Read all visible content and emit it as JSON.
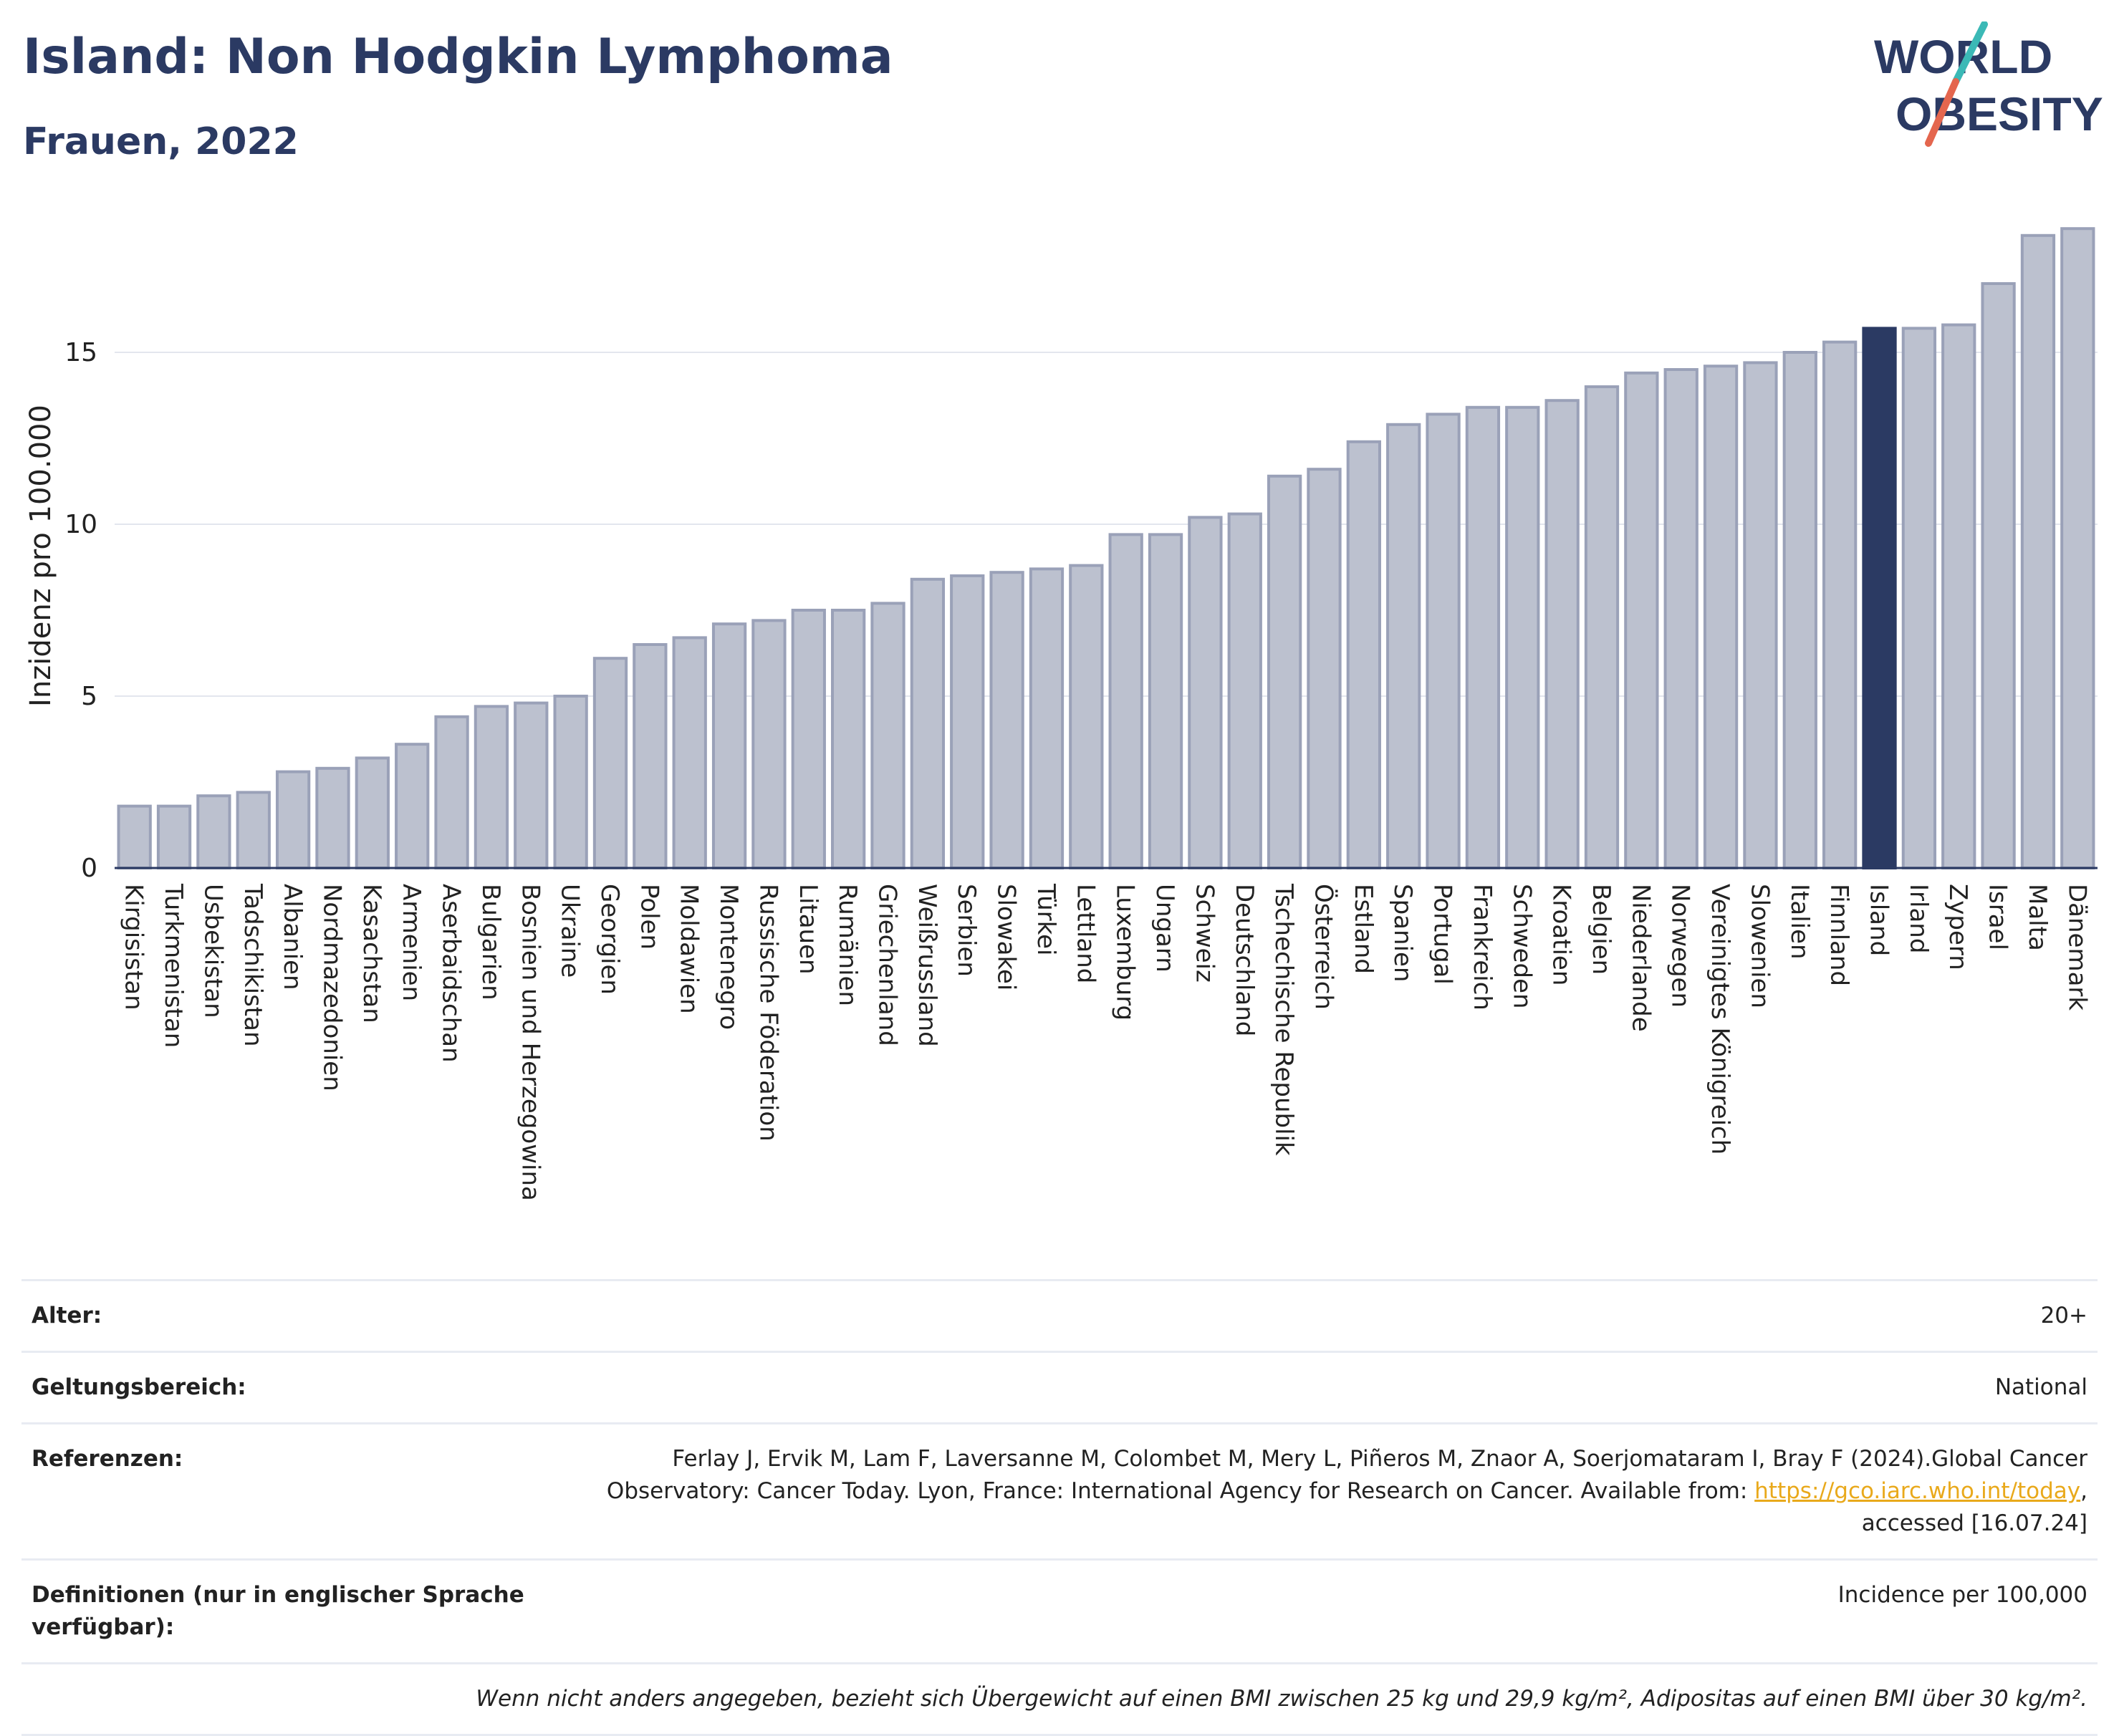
{
  "header": {
    "title": "Island: Non Hodgkin Lymphoma",
    "subtitle": "Frauen, 2022"
  },
  "logo": {
    "line1": "WORLD",
    "line2": "OBESITY",
    "colors": {
      "text": "#2b3a63",
      "slash_teal": "#3bb9b6",
      "slash_red": "#e4664e"
    }
  },
  "chart_data": {
    "type": "bar",
    "ylabel": "Inzidenz pro 100.000",
    "xlabel": "",
    "ylim": [
      0,
      19
    ],
    "yticks": [
      0,
      5,
      10,
      15
    ],
    "grid": true,
    "highlight": "Island",
    "colors": {
      "bar": "#bcc1cf",
      "bar_edge": "#9aa1b8",
      "highlight": "#2b3a63",
      "axis": "#2b3a63",
      "grid": "#e3e6ee"
    },
    "categories": [
      "Kirgisistan",
      "Turkmenistan",
      "Usbekistan",
      "Tadschikistan",
      "Albanien",
      "Nordmazedonien",
      "Kasachstan",
      "Armenien",
      "Aserbaidschan",
      "Bulgarien",
      "Bosnien und Herzegowina",
      "Ukraine",
      "Georgien",
      "Polen",
      "Moldawien",
      "Montenegro",
      "Russische Föderation",
      "Litauen",
      "Rumänien",
      "Griechenland",
      "Weißrussland",
      "Serbien",
      "Slowakei",
      "Türkei",
      "Lettland",
      "Luxemburg",
      "Ungarn",
      "Schweiz",
      "Deutschland",
      "Tschechische Republik",
      "Österreich",
      "Estland",
      "Spanien",
      "Portugal",
      "Frankreich",
      "Schweden",
      "Kroatien",
      "Belgien",
      "Niederlande",
      "Norwegen",
      "Vereinigtes Königreich",
      "Slowenien",
      "Italien",
      "Finnland",
      "Island",
      "Irland",
      "Zypern",
      "Israel",
      "Malta",
      "Dänemark"
    ],
    "values": [
      1.8,
      1.8,
      2.1,
      2.2,
      2.8,
      2.9,
      3.2,
      3.6,
      4.4,
      4.7,
      4.8,
      5.0,
      6.1,
      6.5,
      6.7,
      7.1,
      7.2,
      7.5,
      7.5,
      7.7,
      8.4,
      8.5,
      8.6,
      8.7,
      8.8,
      9.7,
      9.7,
      10.2,
      10.3,
      11.4,
      11.6,
      12.4,
      12.9,
      13.2,
      13.4,
      13.4,
      13.6,
      14.0,
      14.4,
      14.5,
      14.6,
      14.7,
      15.0,
      15.3,
      15.7,
      15.7,
      15.8,
      17.0,
      18.4,
      18.6
    ]
  },
  "info": {
    "age_label": "Alter:",
    "age_value": "20+",
    "scope_label": "Geltungsbereich:",
    "scope_value": "National",
    "ref_label": "Referenzen:",
    "ref_text_1": "Ferlay J, Ervik M, Lam F, Laversanne M, Colombet M, Mery L, Piñeros M, Znaor A, Soerjomataram I, Bray F (2024).Global Cancer",
    "ref_text_2": "Observatory: Cancer Today. Lyon, France: International Agency for Research on Cancer. Available from:",
    "ref_link": "https://gco.iarc.who.int/today",
    "ref_text_3": "accessed [16.07.24]",
    "def_label": "Definitionen (nur in englischer Sprache verfügbar):",
    "def_value": "Incidence per 100,000",
    "note": "Wenn nicht anders angegeben, bezieht sich Übergewicht auf einen BMI zwischen 25 kg und 29,9 kg/m², Adipositas auf einen BMI über 30 kg/m²."
  }
}
